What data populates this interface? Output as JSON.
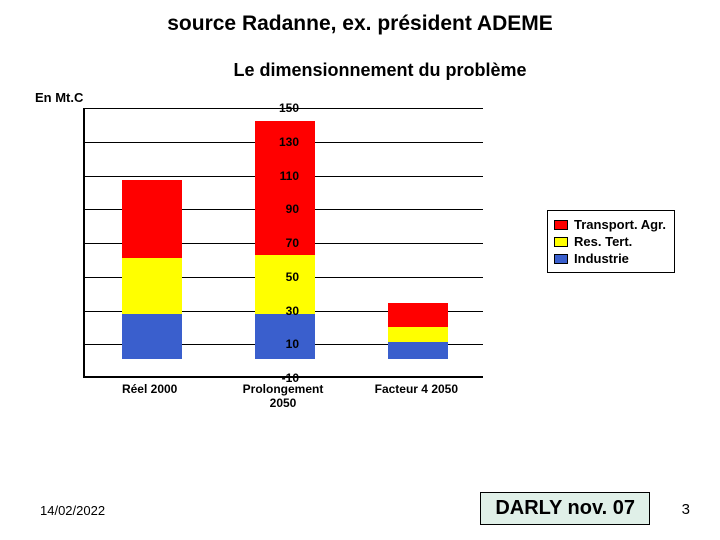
{
  "slide": {
    "title": "source Radanne, ex. président ADEME",
    "date": "14/02/2022",
    "footer_box": "DARLY nov. 07",
    "page_number": "3"
  },
  "chart": {
    "type": "stacked-bar",
    "title": "Le dimensionnement du problème",
    "y_unit_label": "En Mt.C",
    "background_color": "#ffffff",
    "grid_color": "#000000",
    "axis_color": "#000000",
    "ylim_min": -10,
    "ylim_max": 150,
    "ytick_step": 20,
    "yticks": [
      -10,
      10,
      30,
      50,
      70,
      90,
      110,
      130,
      150
    ],
    "title_fontsize": 18,
    "tick_fontsize": 12,
    "bar_width_ratio": 0.45,
    "categories": [
      {
        "label": "Réel 2000",
        "stack": {
          "Industrie": 27,
          "Res.Tert.": 33,
          "Transport.Agr.": 46
        }
      },
      {
        "label": "Prolongement\n2050",
        "stack": {
          "Industrie": 27,
          "Res.Tert.": 35,
          "Transport.Agr.": 79
        }
      },
      {
        "label": "Facteur 4 2050",
        "stack": {
          "Industrie": 10,
          "Res.Tert.": 9,
          "Transport.Agr.": 14
        }
      }
    ],
    "series_order_bottom_to_top": [
      "Industrie",
      "Res.Tert.",
      "Transport.Agr."
    ],
    "series_colors": {
      "Transport.Agr.": "#ff0000",
      "Res.Tert.": "#ffff00",
      "Industrie": "#3a5fcd"
    },
    "legend": {
      "position": "right",
      "items": [
        "Transport. Agr.",
        "Res. Tert.",
        "Industrie"
      ],
      "colors": [
        "#ff0000",
        "#ffff00",
        "#3a5fcd"
      ]
    }
  }
}
